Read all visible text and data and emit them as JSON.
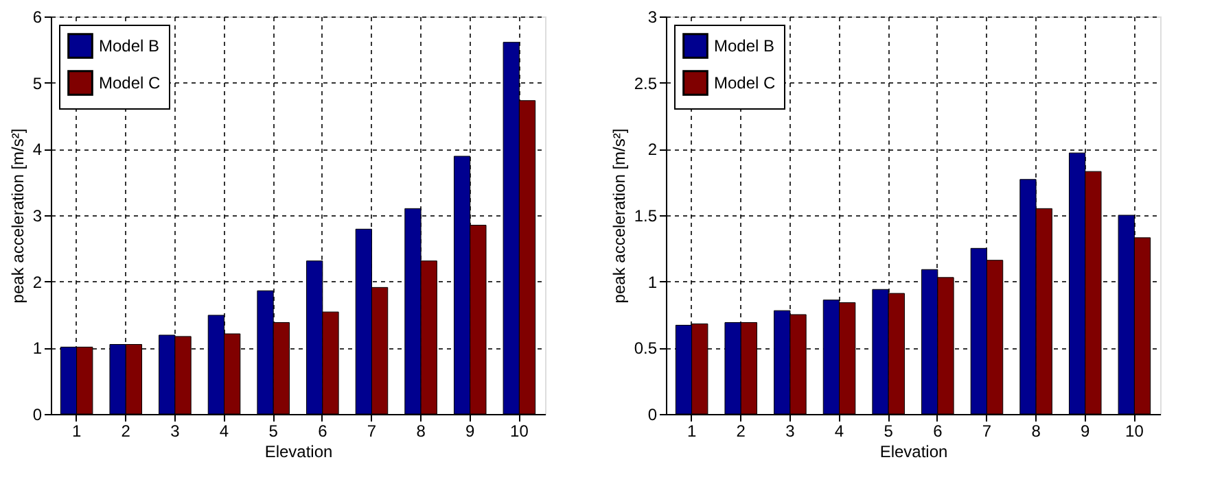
{
  "chart_data": [
    {
      "type": "bar",
      "categories": [
        "1",
        "2",
        "3",
        "4",
        "5",
        "6",
        "7",
        "8",
        "9",
        "10"
      ],
      "xlabel": "Elevation",
      "ylabel": "peak acceleration [m/s²]",
      "ylim": [
        0,
        6
      ],
      "yticks": [
        0,
        1,
        2,
        3,
        4,
        5,
        6
      ],
      "grid": true,
      "legend": "top left",
      "series": [
        {
          "name": "Model B",
          "color": "#00008f",
          "values": [
            1.01,
            1.05,
            1.19,
            1.49,
            1.86,
            2.31,
            2.79,
            3.1,
            3.89,
            5.61
          ]
        },
        {
          "name": "Model C",
          "color": "#800000",
          "values": [
            1.01,
            1.05,
            1.17,
            1.21,
            1.38,
            1.54,
            1.91,
            2.31,
            2.85,
            4.73
          ]
        }
      ]
    },
    {
      "type": "bar",
      "categories": [
        "1",
        "2",
        "3",
        "4",
        "5",
        "6",
        "7",
        "8",
        "9",
        "10"
      ],
      "xlabel": "Elevation",
      "ylabel": "peak acceleration [m/s²]",
      "ylim": [
        0,
        3
      ],
      "yticks": [
        0,
        0.5,
        1,
        1.5,
        2,
        2.5,
        3
      ],
      "grid": true,
      "legend": "top left",
      "series": [
        {
          "name": "Model B",
          "color": "#00008f",
          "values": [
            0.67,
            0.69,
            0.78,
            0.86,
            0.94,
            1.09,
            1.25,
            1.77,
            1.97,
            1.5
          ]
        },
        {
          "name": "Model C",
          "color": "#800000",
          "values": [
            0.68,
            0.69,
            0.75,
            0.84,
            0.91,
            1.03,
            1.16,
            1.55,
            1.83,
            1.33
          ]
        }
      ]
    }
  ]
}
